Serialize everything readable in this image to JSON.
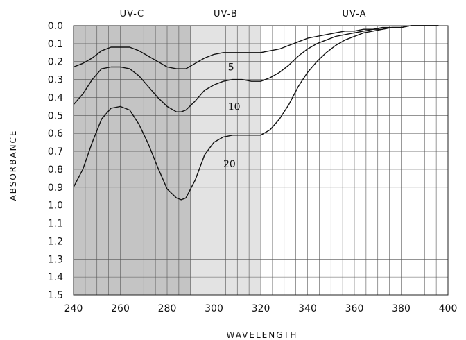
{
  "chart_data": {
    "type": "line",
    "xlabel": "WAVELENGTH",
    "ylabel": "ABSORBANCE",
    "xlim": [
      240,
      400
    ],
    "ylim": [
      0,
      1.5
    ],
    "y_inverted": true,
    "grid": true,
    "x_ticks": [
      "240",
      "260",
      "280",
      "300",
      "320",
      "340",
      "360",
      "380",
      "400"
    ],
    "y_ticks": [
      "0.0",
      "0.1",
      "0.2",
      "0.3",
      "0.4",
      "0.5",
      "0.6",
      "0.7",
      "0.8",
      "0.9",
      "1.0",
      "1.1",
      "1.2",
      "1.3",
      "1.4",
      "1.5"
    ],
    "bands": [
      {
        "label": "UV-C",
        "from": 240,
        "to": 290,
        "color": "#c4c4c4"
      },
      {
        "label": "UV-B",
        "from": 290,
        "to": 320,
        "color": "#e3e3e3"
      },
      {
        "label": "UV-A",
        "from": 320,
        "to": 400,
        "color": "#ffffff"
      }
    ],
    "series": [
      {
        "name": "5",
        "x": [
          240,
          244,
          248,
          252,
          256,
          260,
          264,
          268,
          272,
          276,
          280,
          284,
          286,
          288,
          292,
          296,
          300,
          304,
          308,
          312,
          316,
          320,
          324,
          328,
          332,
          336,
          340,
          344,
          348,
          352,
          356,
          360,
          364,
          368,
          372,
          376,
          380,
          384,
          388,
          392,
          396
        ],
        "y": [
          0.23,
          0.21,
          0.18,
          0.14,
          0.12,
          0.12,
          0.12,
          0.14,
          0.17,
          0.2,
          0.23,
          0.24,
          0.24,
          0.24,
          0.21,
          0.18,
          0.16,
          0.15,
          0.15,
          0.15,
          0.15,
          0.15,
          0.14,
          0.13,
          0.11,
          0.09,
          0.07,
          0.06,
          0.05,
          0.04,
          0.03,
          0.03,
          0.02,
          0.02,
          0.01,
          0.01,
          0.01,
          0.0,
          0.0,
          0.0,
          0.0
        ]
      },
      {
        "name": "10",
        "x": [
          240,
          244,
          248,
          252,
          256,
          260,
          264,
          268,
          272,
          276,
          280,
          284,
          286,
          288,
          292,
          296,
          300,
          304,
          308,
          312,
          316,
          320,
          324,
          328,
          332,
          336,
          340,
          344,
          348,
          352,
          356,
          360,
          364,
          368,
          372,
          376,
          380,
          384,
          388,
          392,
          396
        ],
        "y": [
          0.44,
          0.38,
          0.3,
          0.24,
          0.23,
          0.23,
          0.24,
          0.28,
          0.34,
          0.4,
          0.45,
          0.48,
          0.48,
          0.47,
          0.42,
          0.36,
          0.33,
          0.31,
          0.3,
          0.3,
          0.31,
          0.31,
          0.29,
          0.26,
          0.22,
          0.17,
          0.13,
          0.1,
          0.08,
          0.06,
          0.05,
          0.04,
          0.03,
          0.02,
          0.02,
          0.01,
          0.01,
          0.0,
          0.0,
          0.0,
          0.0
        ]
      },
      {
        "name": "20",
        "x": [
          240,
          244,
          248,
          252,
          256,
          260,
          264,
          268,
          272,
          276,
          280,
          284,
          286,
          288,
          292,
          296,
          300,
          304,
          308,
          312,
          316,
          320,
          324,
          328,
          332,
          336,
          340,
          344,
          348,
          352,
          356,
          360,
          364,
          368,
          372,
          376,
          380,
          384,
          388,
          392,
          396
        ],
        "y": [
          0.9,
          0.8,
          0.65,
          0.52,
          0.46,
          0.45,
          0.47,
          0.55,
          0.66,
          0.79,
          0.91,
          0.96,
          0.97,
          0.96,
          0.86,
          0.72,
          0.65,
          0.62,
          0.61,
          0.61,
          0.61,
          0.61,
          0.58,
          0.52,
          0.44,
          0.34,
          0.26,
          0.2,
          0.15,
          0.11,
          0.08,
          0.06,
          0.04,
          0.03,
          0.02,
          0.01,
          0.01,
          0.0,
          0.0,
          0.0,
          0.0
        ]
      }
    ],
    "series_labels": [
      {
        "text": "5",
        "x": 306,
        "y": 0.23
      },
      {
        "text": "10",
        "x": 306,
        "y": 0.45
      },
      {
        "text": "20",
        "x": 304,
        "y": 0.77
      }
    ]
  }
}
